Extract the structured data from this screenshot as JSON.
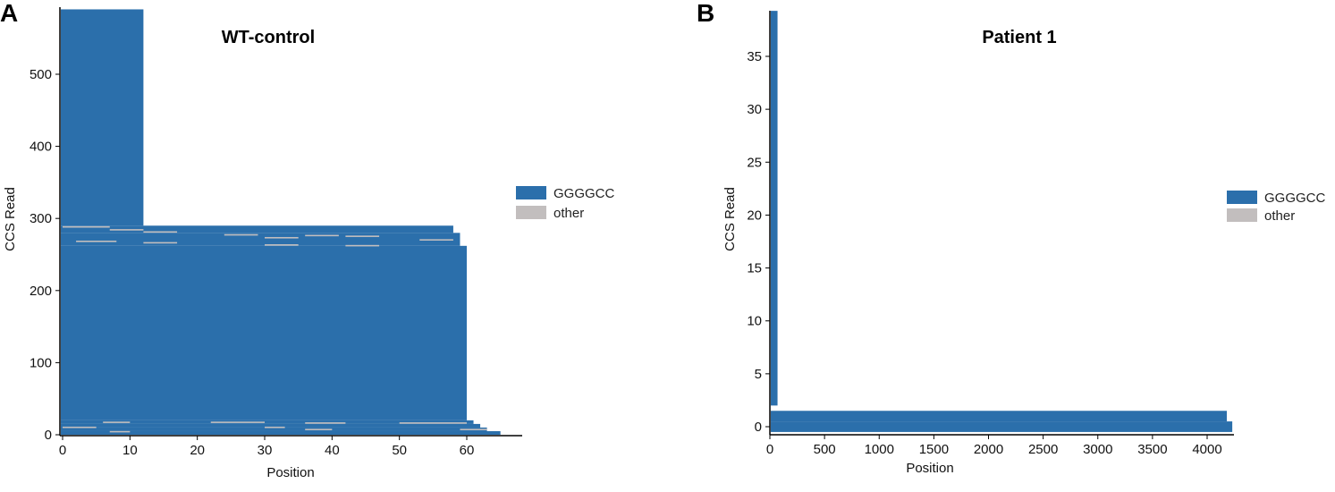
{
  "colors": {
    "GGGGCC": "#2b6fab",
    "other": "#c2bebe"
  },
  "chart_data": [
    {
      "panel_label": "A",
      "type": "heatmap",
      "title": "WT-control",
      "xlabel": "Position",
      "ylabel": "CCS Read",
      "xlim": [
        -0.5,
        68
      ],
      "ylim": [
        -3,
        590
      ],
      "xticks": [
        0,
        10,
        20,
        30,
        40,
        50,
        60
      ],
      "yticks": [
        0,
        100,
        200,
        300,
        400,
        500
      ],
      "legend": {
        "placement": "right",
        "entries": [
          "GGGGCC",
          "other"
        ]
      },
      "read_groups": [
        {
          "reads": [
            290,
            590
          ],
          "length": 12,
          "motif": "GGGGCC"
        },
        {
          "reads": [
            280,
            290
          ],
          "length": 58,
          "motif": "GGGGCC"
        },
        {
          "reads": [
            262,
            280
          ],
          "length": 59,
          "motif": "GGGGCC"
        },
        {
          "reads": [
            20,
            262
          ],
          "length": 60,
          "motif": "GGGGCC"
        },
        {
          "reads": [
            15,
            20
          ],
          "length": 61,
          "motif": "GGGGCC"
        },
        {
          "reads": [
            10,
            15
          ],
          "length": 62,
          "motif": "GGGGCC"
        },
        {
          "reads": [
            5,
            10
          ],
          "length": 63,
          "motif": "GGGGCC"
        },
        {
          "reads": [
            0,
            5
          ],
          "length": 65,
          "motif": "GGGGCC"
        }
      ],
      "other_segments": [
        {
          "read": 288,
          "start": 0,
          "end": 7
        },
        {
          "read": 284,
          "start": 7,
          "end": 12
        },
        {
          "read": 281,
          "start": 12,
          "end": 17
        },
        {
          "read": 277,
          "start": 24,
          "end": 29
        },
        {
          "read": 273,
          "start": 30,
          "end": 35
        },
        {
          "read": 276,
          "start": 36,
          "end": 41
        },
        {
          "read": 268,
          "start": 2,
          "end": 8
        },
        {
          "read": 266,
          "start": 12,
          "end": 17
        },
        {
          "read": 263,
          "start": 30,
          "end": 35
        },
        {
          "read": 262,
          "start": 42,
          "end": 47
        },
        {
          "read": 275,
          "start": 42,
          "end": 47
        },
        {
          "read": 270,
          "start": 53,
          "end": 58
        },
        {
          "read": 10,
          "start": 0,
          "end": 5
        },
        {
          "read": 17,
          "start": 6,
          "end": 10
        },
        {
          "read": 4,
          "start": 7,
          "end": 10
        },
        {
          "read": 17,
          "start": 22,
          "end": 30
        },
        {
          "read": 10,
          "start": 30,
          "end": 33
        },
        {
          "read": 16,
          "start": 36,
          "end": 42
        },
        {
          "read": 7,
          "start": 36,
          "end": 40
        },
        {
          "read": 16,
          "start": 50,
          "end": 60
        },
        {
          "read": 7,
          "start": 59,
          "end": 63
        }
      ]
    },
    {
      "panel_label": "B",
      "type": "heatmap",
      "title": "Patient 1",
      "xlabel": "Position",
      "ylabel": "CCS Read",
      "xlim": [
        0,
        4230
      ],
      "ylim": [
        -0.75,
        39.3
      ],
      "xticks": [
        0,
        500,
        1000,
        1500,
        2000,
        2500,
        3000,
        3500,
        4000
      ],
      "yticks": [
        0,
        5,
        10,
        15,
        20,
        25,
        30,
        35
      ],
      "legend": {
        "placement": "right",
        "entries": [
          "GGGGCC",
          "other"
        ]
      },
      "read_groups": [
        {
          "reads": [
            2,
            39.3
          ],
          "length": 70,
          "motif": "GGGGCC"
        },
        {
          "reads": [
            0.5,
            1.5
          ],
          "length": 4180,
          "motif": "GGGGCC"
        },
        {
          "reads": [
            -0.5,
            0.5
          ],
          "length": 4230,
          "motif": "GGGGCC"
        }
      ]
    }
  ]
}
